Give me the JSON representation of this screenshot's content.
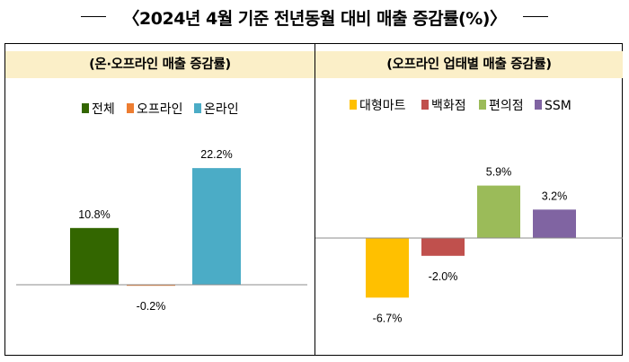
{
  "title": "〈2024년 4월 기준 전년동월 대비 매출 증감률(%)〉",
  "chart_data": [
    {
      "type": "bar",
      "title": "(온·오프라인 매출 증감률)",
      "categories": [
        "전체",
        "오프라인",
        "온라인"
      ],
      "values": [
        10.8,
        -0.2,
        22.2
      ],
      "labels": [
        "10.8%",
        "-0.2%",
        "22.2%"
      ],
      "colors": [
        "#336600",
        "#ed7d31",
        "#4bacc6"
      ],
      "ylim": [
        -10,
        25
      ],
      "legend": "top"
    },
    {
      "type": "bar",
      "title": "(오프라인 업태별 매출 증감률)",
      "categories": [
        "대형마트",
        "백화점",
        "편의점",
        "SSM"
      ],
      "values": [
        -6.7,
        -2.0,
        5.9,
        3.2
      ],
      "labels": [
        "-6.7%",
        "-2.0%",
        "5.9%",
        "3.2%"
      ],
      "colors": [
        "#ffc000",
        "#c0504d",
        "#9bbb59",
        "#8064a2"
      ],
      "ylim": [
        -8,
        8
      ],
      "legend": "top"
    }
  ]
}
